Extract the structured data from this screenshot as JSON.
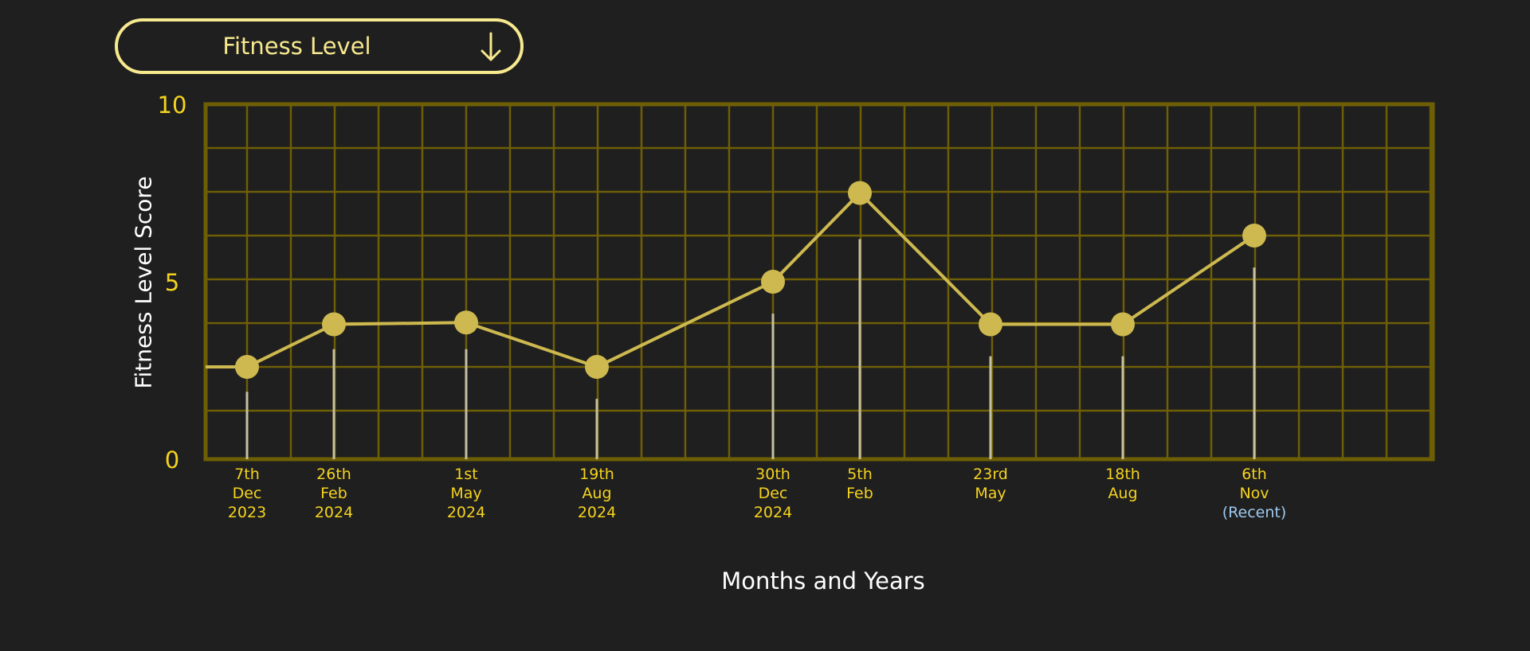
{
  "dropdown": {
    "label": "Fitness Level"
  },
  "colors": {
    "background": "#1f1f1f",
    "accent": "#f7e98e",
    "grid": "#6e5f05",
    "point": "#cdb94f",
    "line": "#cdb94f",
    "stem": "#c7c0a0",
    "tick_text": "#f5d31e",
    "recent_text": "#9ec9ee",
    "axis_title": "#ffffff"
  },
  "chart_data": {
    "type": "line",
    "title": "",
    "xlabel": "Months and Years",
    "ylabel": "Fitness Level Score",
    "ylim": [
      0,
      10
    ],
    "yticks": [
      "0",
      "5",
      "10"
    ],
    "grid": true,
    "points": [
      {
        "label": [
          "7th",
          "Dec",
          "2023"
        ],
        "value": 2.6
      },
      {
        "label": [
          "26th",
          "Feb",
          "2024"
        ],
        "value": 3.8
      },
      {
        "label": [
          "1st",
          "May",
          "2024"
        ],
        "value": 3.85
      },
      {
        "label": [
          "19th",
          "Aug",
          "2024"
        ],
        "value": 2.6
      },
      {
        "label": [
          "30th",
          "Dec",
          "2024"
        ],
        "value": 5.0
      },
      {
        "label": [
          "5th",
          "Feb"
        ],
        "value": 7.5
      },
      {
        "label": [
          "23rd",
          "May"
        ],
        "value": 3.8
      },
      {
        "label": [
          "18th",
          "Aug"
        ],
        "value": 3.8
      },
      {
        "label": [
          "6th",
          "Nov",
          "(Recent)"
        ],
        "value": 6.3
      }
    ],
    "stems": [
      1.9,
      3.1,
      3.1,
      1.7,
      4.1,
      6.2,
      2.9,
      2.9,
      5.4
    ]
  }
}
